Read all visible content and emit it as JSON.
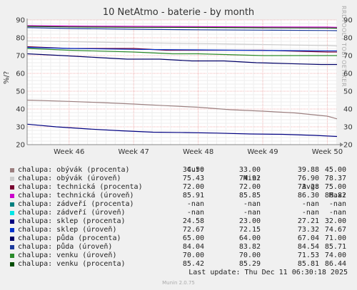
{
  "title": "10 NetAtmo - baterie - by month",
  "side_label": "RRDTOOL / TOBI OETIKER",
  "footer": {
    "last_update": "Last update: Thu Dec 11 06:30:18 2025",
    "version": "Munin 2.0.75"
  },
  "legend_headers": {
    "cur": "Cur:",
    "min": "Min:",
    "avg": "Avg:",
    "max": "Max:"
  },
  "legend": [
    {
      "name": "chalupa: obývák (procenta)",
      "color": "#9c8080",
      "cur": "34.50",
      "min": "33.00",
      "avg": "39.88",
      "max": "45.00"
    },
    {
      "name": "chalupa: obývák (úroveň)",
      "color": "#cccccc",
      "cur": "75.43",
      "min": "74.92",
      "avg": "76.90",
      "max": "78.37"
    },
    {
      "name": "chalupa: technická (procenta)",
      "color": "#780030",
      "cur": "72.00",
      "min": "72.00",
      "avg": "73.28",
      "max": "75.00"
    },
    {
      "name": "chalupa: technická (úroveň)",
      "color": "#cc00cc",
      "cur": "85.91",
      "min": "85.85",
      "avg": "86.30",
      "max": "86.82"
    },
    {
      "name": "chalupa: zádveří (procenta)",
      "color": "#008080",
      "cur": "-nan",
      "min": "-nan",
      "avg": "-nan",
      "max": "-nan"
    },
    {
      "name": "chalupa: zádveří (úroveň)",
      "color": "#00e5e5",
      "cur": "-nan",
      "min": "-nan",
      "avg": "-nan",
      "max": "-nan"
    },
    {
      "name": "chalupa: sklep (procenta)",
      "color": "#000080",
      "cur": "24.58",
      "min": "23.00",
      "avg": "27.21",
      "max": "32.00"
    },
    {
      "name": "chalupa: sklep (úroveň)",
      "color": "#0033cc",
      "cur": "72.67",
      "min": "72.15",
      "avg": "73.32",
      "max": "74.67"
    },
    {
      "name": "chalupa: půda (procenta)",
      "color": "#000066",
      "cur": "65.00",
      "min": "64.00",
      "avg": "67.04",
      "max": "71.00"
    },
    {
      "name": "chalupa: půda (úroveň)",
      "color": "#1b3a9c",
      "cur": "84.04",
      "min": "83.82",
      "avg": "84.54",
      "max": "85.71"
    },
    {
      "name": "chalupa: venku (úroveň)",
      "color": "#2a8a2a",
      "cur": "70.00",
      "min": "70.00",
      "avg": "71.53",
      "max": "74.00"
    },
    {
      "name": "chalupa: venku (procenta)",
      "color": "#004d00",
      "cur": "85.42",
      "min": "85.29",
      "avg": "85.81",
      "max": "86.44"
    }
  ],
  "chart_data": {
    "type": "line",
    "title": "10 NetAtmo - baterie - by month",
    "ylabel": "%/?",
    "ylim": [
      20,
      90
    ],
    "yticks": [
      20,
      30,
      40,
      50,
      60,
      70,
      80,
      90
    ],
    "xticks": [
      "Week 46",
      "Week 47",
      "Week 48",
      "Week 49",
      "Week 50"
    ],
    "grid": true,
    "x_range_weeks": [
      45.35,
      50.15
    ],
    "series": [
      {
        "name": "chalupa: obývák (procenta)",
        "color": "#9c8080",
        "x": [
          45.35,
          46.0,
          46.5,
          47.0,
          47.5,
          48.0,
          48.5,
          49.0,
          49.5,
          50.0,
          50.15
        ],
        "y": [
          45,
          44.3,
          43.6,
          42.8,
          41.9,
          41.0,
          39.6,
          38.8,
          37.8,
          36.0,
          34.5
        ]
      },
      {
        "name": "chalupa: obývák (úroveň)",
        "color": "#cccccc",
        "x": [
          45.35,
          46.0,
          47.0,
          48.0,
          49.0,
          50.0,
          50.15
        ],
        "y": [
          78.3,
          77.8,
          77.2,
          76.8,
          76.2,
          75.6,
          75.4
        ]
      },
      {
        "name": "chalupa: technická (procenta)",
        "color": "#780030",
        "x": [
          45.35,
          46.0,
          47.0,
          47.5,
          48.0,
          49.0,
          50.0,
          50.15
        ],
        "y": [
          75,
          74,
          74,
          73,
          73,
          73,
          72,
          72
        ]
      },
      {
        "name": "chalupa: technická (úroveň)",
        "color": "#cc00cc",
        "x": [
          45.35,
          46.0,
          47.0,
          48.0,
          49.0,
          50.0,
          50.15
        ],
        "y": [
          86.8,
          86.6,
          86.4,
          86.3,
          86.1,
          86.0,
          85.9
        ]
      },
      {
        "name": "chalupa: sklep (procenta)",
        "color": "#000080",
        "x": [
          45.35,
          45.8,
          46.3,
          46.8,
          47.3,
          47.8,
          48.3,
          48.8,
          49.3,
          49.8,
          50.15
        ],
        "y": [
          31.5,
          30.0,
          28.8,
          27.8,
          27.0,
          26.8,
          26.5,
          26.0,
          25.8,
          25.2,
          24.6
        ]
      },
      {
        "name": "chalupa: sklep (úroveň)",
        "color": "#0033cc",
        "x": [
          45.35,
          46.0,
          47.0,
          48.0,
          49.0,
          50.0,
          50.15
        ],
        "y": [
          74.6,
          74.0,
          73.5,
          73.2,
          72.9,
          72.7,
          72.7
        ]
      },
      {
        "name": "chalupa: půda (procenta)",
        "color": "#000066",
        "x": [
          45.35,
          45.9,
          46.4,
          46.9,
          47.4,
          47.9,
          48.4,
          48.9,
          49.4,
          49.9,
          50.15
        ],
        "y": [
          71,
          70,
          69,
          68,
          68,
          67,
          67,
          66,
          65.5,
          65,
          65
        ]
      },
      {
        "name": "chalupa: půda (úroveň)",
        "color": "#1b3a9c",
        "x": [
          45.35,
          46.0,
          47.0,
          48.0,
          49.0,
          50.0,
          50.15
        ],
        "y": [
          85.7,
          85.2,
          84.8,
          84.5,
          84.3,
          84.1,
          84.0
        ]
      },
      {
        "name": "chalupa: venku (úroveň)",
        "color": "#2a8a2a",
        "x": [
          45.35,
          46.0,
          47.0,
          47.6,
          48.0,
          49.0,
          50.0,
          50.15
        ],
        "y": [
          74,
          73,
          72,
          71,
          71,
          70,
          70,
          70
        ]
      },
      {
        "name": "chalupa: venku (procenta)",
        "color": "#004d00",
        "x": [
          45.35,
          46.0,
          47.0,
          48.0,
          49.0,
          50.0,
          50.15
        ],
        "y": [
          86.4,
          86.1,
          85.9,
          85.8,
          85.6,
          85.5,
          85.4
        ]
      }
    ]
  }
}
